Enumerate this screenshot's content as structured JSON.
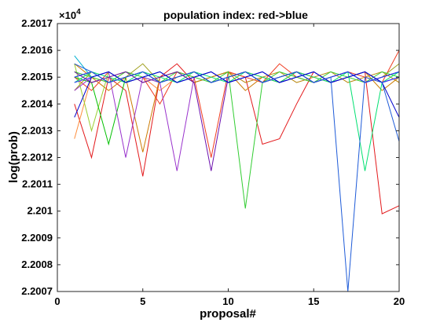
{
  "chart_data": {
    "type": "line",
    "title": "population index:  red->blue",
    "xlabel": "proposal#",
    "ylabel": "log(prob)",
    "y_exponent_label": "×10",
    "y_exponent_power": "4",
    "xlim": [
      0,
      20
    ],
    "ylim": [
      2.2007,
      2.2017
    ],
    "x_ticks": [
      0,
      5,
      10,
      15,
      20
    ],
    "x_tick_labels": [
      "0",
      "5",
      "10",
      "15",
      "20"
    ],
    "y_ticks": [
      2.2007,
      2.2008,
      2.2009,
      2.201,
      2.2011,
      2.2012,
      2.2013,
      2.2014,
      2.2015,
      2.2016,
      2.2017
    ],
    "y_tick_labels": [
      "2.2007",
      "2.2008",
      "2.2009",
      "2.201",
      "2.2011",
      "2.2012",
      "2.2013",
      "2.2014",
      "2.2015",
      "2.2016",
      "2.2017"
    ],
    "grid": false,
    "legend": "none",
    "x": [
      1,
      2,
      3,
      4,
      5,
      6,
      7,
      8,
      9,
      10,
      11,
      12,
      13,
      14,
      15,
      16,
      17,
      18,
      19,
      20
    ],
    "series": [
      {
        "color": "#e31a1c",
        "values": [
          2.2014,
          2.2012,
          2.2015,
          2.20145,
          2.20113,
          2.2015,
          2.20155,
          2.20148,
          2.2015,
          2.20152,
          2.2015,
          2.20125,
          2.20127,
          2.2014,
          2.20152,
          2.20148,
          2.2015,
          2.20152,
          2.20099,
          2.20102
        ]
      },
      {
        "color": "#f03b20",
        "values": [
          2.2015,
          2.20145,
          2.20152,
          2.20148,
          2.2015,
          2.2014,
          2.20152,
          2.2015,
          2.2012,
          2.20152,
          2.2015,
          2.20148,
          2.20155,
          2.2015,
          2.20148,
          2.2015,
          2.20152,
          2.2015,
          2.20148,
          2.2016
        ]
      },
      {
        "color": "#fd8d3c",
        "values": [
          2.20127,
          2.2015,
          2.20148,
          2.20152,
          2.2015,
          2.20145,
          2.2015,
          2.20152,
          2.20148,
          2.2015,
          2.20152,
          2.2015,
          2.20148,
          2.20152,
          2.2015,
          2.20148,
          2.2015,
          2.20152,
          2.20148,
          2.2015
        ]
      },
      {
        "color": "#cc7a00",
        "values": [
          2.20155,
          2.2015,
          2.20145,
          2.2015,
          2.20122,
          2.2015,
          2.20152,
          2.20148,
          2.2015,
          2.20152,
          2.20145,
          2.2015,
          2.20148,
          2.20152,
          2.2015,
          2.20148,
          2.2015,
          2.20152,
          2.20145,
          2.2015
        ]
      },
      {
        "color": "#b8860b",
        "values": [
          2.20152,
          2.20148,
          2.2015,
          2.20152,
          2.20148,
          2.2015,
          2.20152,
          2.20148,
          2.2015,
          2.20152,
          2.20148,
          2.2015,
          2.20152,
          2.20148,
          2.2015,
          2.20152,
          2.20148,
          2.2015,
          2.20152,
          2.20148
        ]
      },
      {
        "color": "#a0a020",
        "values": [
          2.20145,
          2.20152,
          2.20148,
          2.2015,
          2.20155,
          2.20148,
          2.2015,
          2.20152,
          2.20148,
          2.2015,
          2.20152,
          2.20148,
          2.2015,
          2.20152,
          2.20148,
          2.2015,
          2.20152,
          2.20148,
          2.2015,
          2.20155
        ]
      },
      {
        "color": "#9acd32",
        "values": [
          2.20155,
          2.2013,
          2.20152,
          2.20148,
          2.2015,
          2.20152,
          2.20148,
          2.2015,
          2.20152,
          2.20148,
          2.2015,
          2.20152,
          2.20148,
          2.2015,
          2.20152,
          2.20148,
          2.2015,
          2.20152,
          2.20148,
          2.2015
        ]
      },
      {
        "color": "#00c000",
        "values": [
          2.2015,
          2.20148,
          2.20125,
          2.2015,
          2.20152,
          2.20148,
          2.2015,
          2.20152,
          2.20148,
          2.2015,
          2.20152,
          2.20148,
          2.2015,
          2.20152,
          2.20148,
          2.2015,
          2.20152,
          2.20148,
          2.2015,
          2.20152
        ]
      },
      {
        "color": "#32cd32",
        "values": [
          2.20152,
          2.2015,
          2.20148,
          2.20152,
          2.2015,
          2.20148,
          2.20152,
          2.2015,
          2.20148,
          2.20152,
          2.20101,
          2.20148,
          2.20152,
          2.2015,
          2.20148,
          2.20152,
          2.2015,
          2.20148,
          2.20152,
          2.2015
        ]
      },
      {
        "color": "#00e070",
        "values": [
          2.20148,
          2.20152,
          2.2015,
          2.20148,
          2.20152,
          2.2015,
          2.20148,
          2.20152,
          2.2015,
          2.20148,
          2.20152,
          2.2015,
          2.20148,
          2.20152,
          2.2015,
          2.20148,
          2.20152,
          2.20115,
          2.20148,
          2.20152
        ]
      },
      {
        "color": "#00c0a0",
        "values": [
          2.2015,
          2.20152,
          2.20148,
          2.2015,
          2.20152,
          2.20148,
          2.2015,
          2.20152,
          2.20148,
          2.2015,
          2.20152,
          2.20148,
          2.2015,
          2.20152,
          2.20148,
          2.2015,
          2.20152,
          2.20148,
          2.2015,
          2.20152
        ]
      },
      {
        "color": "#00b0d0",
        "values": [
          2.20158,
          2.2015,
          2.20152,
          2.20148,
          2.2015,
          2.20152,
          2.20148,
          2.2015,
          2.20152,
          2.20148,
          2.2015,
          2.20152,
          2.20148,
          2.2015,
          2.20152,
          2.20148,
          2.2015,
          2.20152,
          2.20148,
          2.2015
        ]
      },
      {
        "color": "#9932cc",
        "values": [
          2.20145,
          2.2015,
          2.20152,
          2.2012,
          2.2015,
          2.20148,
          2.20115,
          2.2015,
          2.20152,
          2.20148,
          2.2015,
          2.20152,
          2.20148,
          2.2015,
          2.20152,
          2.20148,
          2.2015,
          2.20152,
          2.20148,
          2.2015
        ]
      },
      {
        "color": "#8b008b",
        "values": [
          2.2015,
          2.20152,
          2.20148,
          2.2015,
          2.20152,
          2.20148,
          2.2015,
          2.20152,
          2.20148,
          2.2015,
          2.20152,
          2.20148,
          2.2015,
          2.20152,
          2.20148,
          2.2015,
          2.20152,
          2.20148,
          2.2015,
          2.20152
        ]
      },
      {
        "color": "#6a0dad",
        "values": [
          2.20152,
          2.20148,
          2.2015,
          2.20152,
          2.20148,
          2.2015,
          2.20152,
          2.20148,
          2.20115,
          2.2015,
          2.20152,
          2.20148,
          2.2015,
          2.20152,
          2.20148,
          2.2015,
          2.20152,
          2.20148,
          2.2015,
          2.20152
        ]
      },
      {
        "color": "#3333ff",
        "values": [
          2.20148,
          2.2015,
          2.20152,
          2.20148,
          2.2015,
          2.20152,
          2.20148,
          2.2015,
          2.20152,
          2.20148,
          2.2015,
          2.20152,
          2.20148,
          2.2015,
          2.20152,
          2.20148,
          2.2015,
          2.20152,
          2.20148,
          2.2015
        ]
      },
      {
        "color": "#1f3fff",
        "values": [
          2.2015,
          2.20152,
          2.20148,
          2.2015,
          2.20152,
          2.20148,
          2.2015,
          2.20152,
          2.20148,
          2.2015,
          2.20152,
          2.20148,
          2.2015,
          2.20152,
          2.20148,
          2.2015,
          2.20152,
          2.20148,
          2.2015,
          2.20152
        ]
      },
      {
        "color": "#0000cd",
        "values": [
          2.20135,
          2.2015,
          2.20152,
          2.20148,
          2.2015,
          2.20152,
          2.20148,
          2.2015,
          2.20152,
          2.20148,
          2.2015,
          2.20152,
          2.20148,
          2.2015,
          2.20152,
          2.20148,
          2.2015,
          2.20152,
          2.20148,
          2.20135
        ]
      },
      {
        "color": "#1e5bd8",
        "values": [
          2.20155,
          2.20152,
          2.20148,
          2.2015,
          2.20152,
          2.20148,
          2.2015,
          2.20152,
          2.20148,
          2.2015,
          2.20152,
          2.20148,
          2.2015,
          2.20152,
          2.20148,
          2.2015,
          2.2007,
          2.2015,
          2.20148,
          2.20126
        ]
      }
    ]
  }
}
